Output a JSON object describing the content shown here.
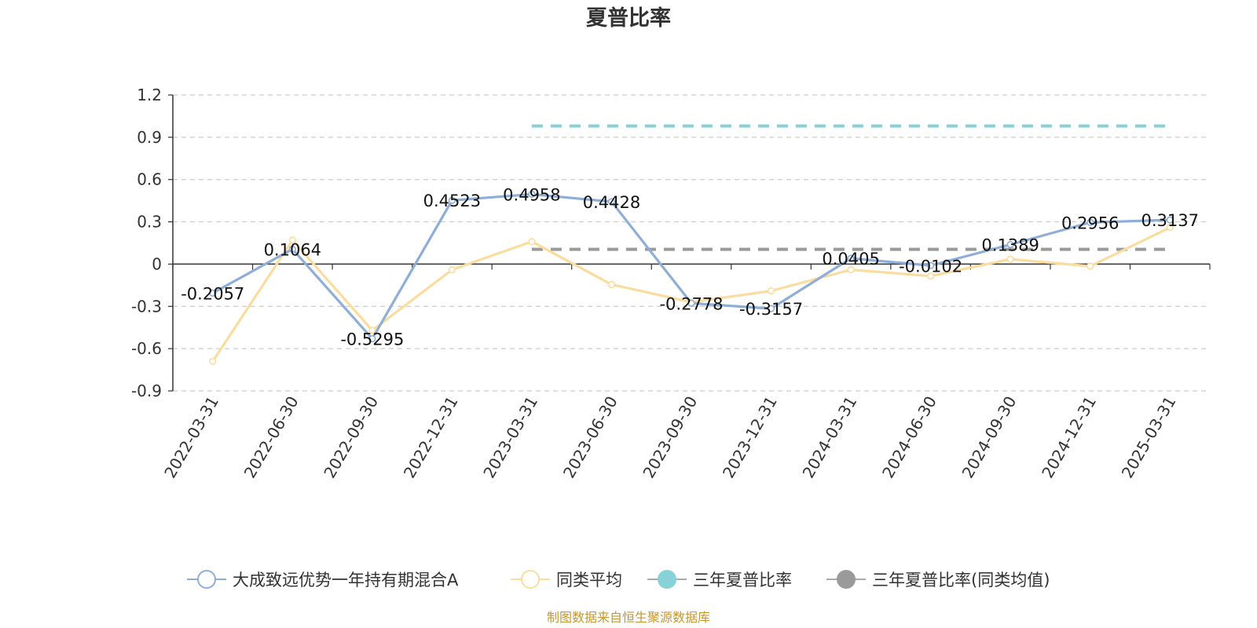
{
  "chart_data": {
    "type": "line",
    "title": "夏普比率",
    "xlabel": "",
    "ylabel": "",
    "categories": [
      "2022-03-31",
      "2022-06-30",
      "2022-09-30",
      "2022-12-31",
      "2023-03-31",
      "2023-06-30",
      "2023-09-30",
      "2023-12-31",
      "2024-03-31",
      "2024-06-30",
      "2024-09-30",
      "2024-12-31",
      "2025-03-31"
    ],
    "ylim": [
      -0.9,
      1.2
    ],
    "yticks": [
      "1.2",
      "0.9",
      "0.6",
      "0.3",
      "0",
      "-0.3",
      "-0.6",
      "-0.9"
    ],
    "grid": true,
    "legend_position": "bottom",
    "series": [
      {
        "name": "大成致远优势一年持有期混合A",
        "color": "#8eaed8",
        "values": [
          -0.2057,
          0.1064,
          -0.5295,
          0.4523,
          0.4958,
          0.4428,
          -0.2778,
          -0.3157,
          0.0405,
          -0.0102,
          0.1389,
          0.2956,
          0.3137
        ],
        "labels": [
          "-0.2057",
          "0.1064",
          "-0.5295",
          "0.4523",
          "0.4958",
          "0.4428",
          "-0.2778",
          "-0.3157",
          "0.0405",
          "-0.0102",
          "0.1389",
          "0.2956",
          "0.3137"
        ]
      },
      {
        "name": "同类平均",
        "color": "#fadc9e",
        "values": [
          -0.69,
          0.17,
          -0.47,
          -0.04,
          0.16,
          -0.145,
          -0.27,
          -0.19,
          -0.04,
          -0.085,
          0.035,
          -0.015,
          0.26
        ]
      }
    ],
    "reference_lines": [
      {
        "name": "三年夏普比率",
        "color": "#86d2d6",
        "value": 0.98,
        "from": "2023-03-31",
        "to": "2025-03-31"
      },
      {
        "name": "三年夏普比率(同类均值)",
        "color": "#9a9a9a",
        "value": 0.105,
        "from": "2023-03-31",
        "to": "2025-03-31"
      }
    ]
  },
  "source_text": "制图数据来自恒生聚源数据库"
}
